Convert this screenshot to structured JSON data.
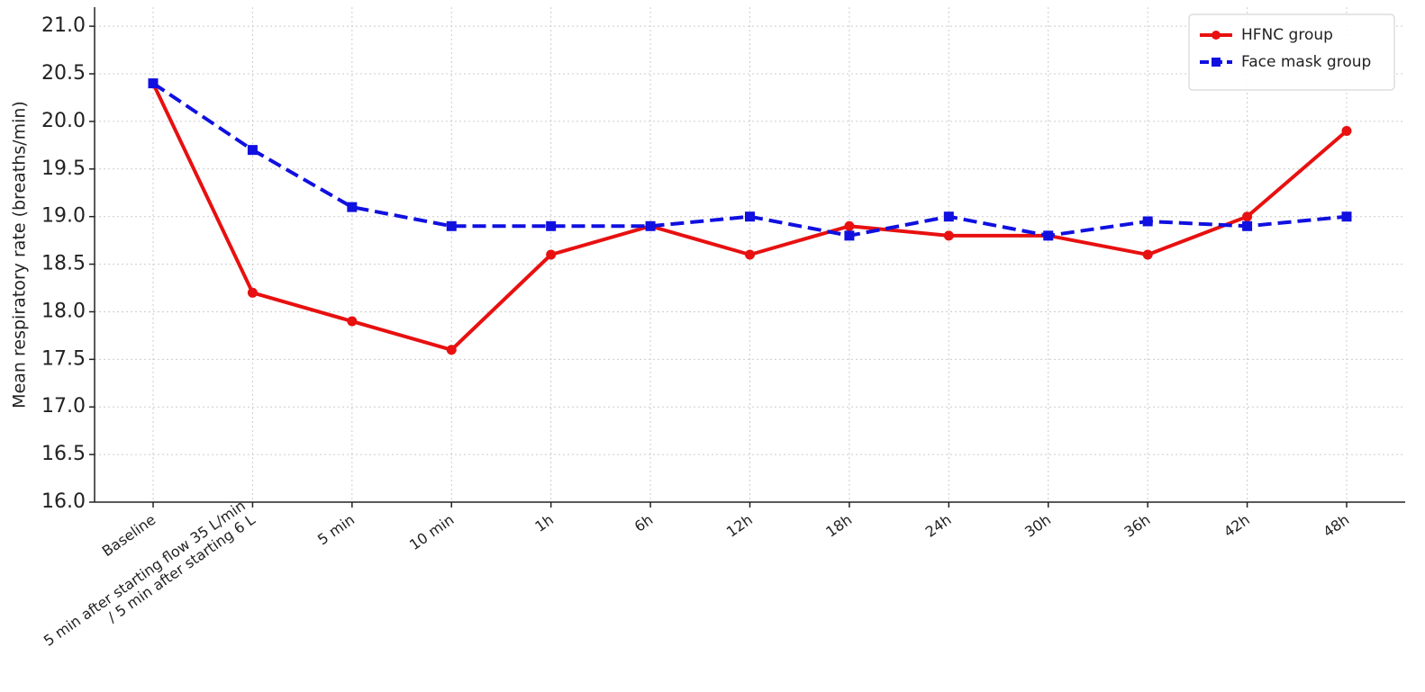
{
  "chart_data": {
    "type": "line",
    "y_label": "Mean respiratory rate (breaths/min)",
    "categories": [
      "Baseline",
      "5 min after starting flow 35 L/min\n/ 5 min after starting 6 L",
      "5 min",
      "10 min",
      "1h",
      "6h",
      "12h",
      "18h",
      "24h",
      "30h",
      "36h",
      "42h",
      "48h"
    ],
    "series": [
      {
        "name": "HFNC group",
        "color": "#e81010",
        "linestyle": "solid",
        "marker": "circle",
        "values": [
          20.4,
          18.2,
          17.9,
          17.6,
          18.6,
          18.9,
          18.6,
          18.9,
          18.8,
          18.8,
          18.6,
          19.0,
          19.9
        ]
      },
      {
        "name": "Face mask group",
        "color": "#1010e0",
        "linestyle": "dashed",
        "marker": "square",
        "values": [
          20.4,
          19.7,
          19.1,
          18.9,
          18.9,
          18.9,
          19.0,
          18.8,
          19.0,
          18.8,
          18.95,
          18.9,
          19.0
        ]
      }
    ],
    "ylim": [
      16.0,
      21.2
    ],
    "yticks": [
      {
        "value": 16,
        "label": "16.0"
      },
      {
        "value": 16.5,
        "label": "16.5"
      },
      {
        "value": 17,
        "label": "17.0"
      },
      {
        "value": 17.5,
        "label": "17.5"
      },
      {
        "value": 18,
        "label": "18.0"
      },
      {
        "value": 18.5,
        "label": "18.5"
      },
      {
        "value": 19,
        "label": "19.0"
      },
      {
        "value": 19.5,
        "label": "19.5"
      },
      {
        "value": 20,
        "label": "20.0"
      },
      {
        "value": 20.5,
        "label": "20.5"
      },
      {
        "value": 21,
        "label": "21.0"
      }
    ],
    "grid": true,
    "legend": "upper right"
  }
}
